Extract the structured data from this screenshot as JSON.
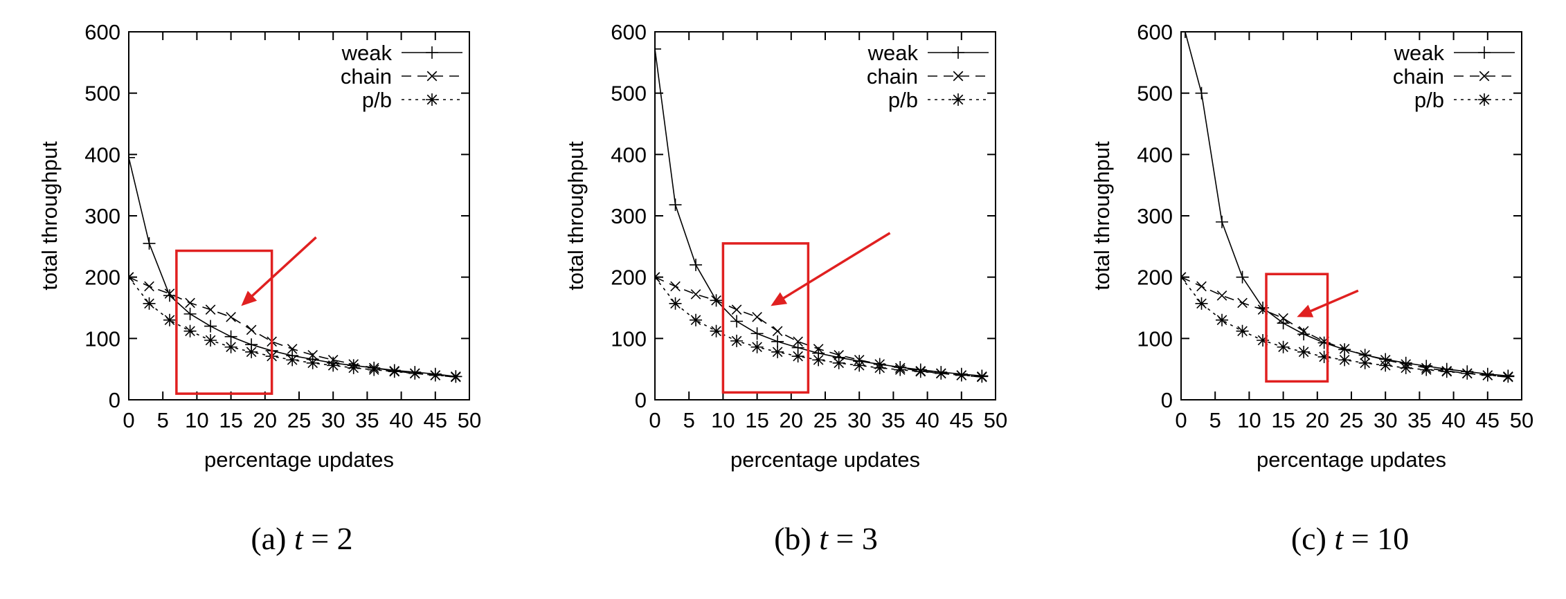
{
  "chart_data": [
    {
      "type": "line",
      "caption": {
        "label": "(a)",
        "variable": "t",
        "value": "= 2"
      },
      "xlabel": "percentage updates",
      "ylabel": "total throughput",
      "xlim": [
        0,
        50
      ],
      "ylim": [
        0,
        600
      ],
      "xticks": [
        0,
        5,
        10,
        15,
        20,
        25,
        30,
        35,
        40,
        45,
        50
      ],
      "yticks": [
        0,
        100,
        200,
        300,
        400,
        500,
        600
      ],
      "legend_position": "top-right",
      "series": [
        {
          "name": "weak",
          "marker": "plus",
          "dash": "solid",
          "x": [
            0,
            3,
            6,
            9,
            12,
            15,
            18,
            21,
            24,
            27,
            30,
            33,
            36,
            39,
            42,
            45,
            48
          ],
          "y": [
            395,
            255,
            170,
            140,
            120,
            103,
            90,
            80,
            72,
            66,
            60,
            56,
            52,
            48,
            45,
            42,
            38
          ]
        },
        {
          "name": "chain",
          "marker": "x",
          "dash": "dashed",
          "x": [
            0,
            3,
            6,
            9,
            12,
            15,
            18,
            21,
            24,
            27,
            30,
            33,
            36,
            39,
            42,
            45,
            48
          ],
          "y": [
            200,
            185,
            173,
            158,
            147,
            135,
            114,
            95,
            83,
            73,
            65,
            58,
            52,
            47,
            43,
            40,
            37
          ]
        },
        {
          "name": "p/b",
          "marker": "star",
          "dash": "dotted",
          "x": [
            0,
            3,
            6,
            9,
            12,
            15,
            18,
            21,
            24,
            27,
            30,
            33,
            36,
            39,
            42,
            45,
            48
          ],
          "y": [
            200,
            157,
            130,
            112,
            97,
            86,
            78,
            71,
            65,
            60,
            56,
            52,
            49,
            46,
            43,
            40,
            38
          ]
        }
      ],
      "highlight_box": {
        "x": [
          7,
          21
        ],
        "y": [
          10,
          243
        ]
      },
      "arrow": {
        "from": [
          27.5,
          265
        ],
        "to": [
          16.5,
          153
        ]
      }
    },
    {
      "type": "line",
      "caption": {
        "label": "(b)",
        "variable": "t",
        "value": "= 3"
      },
      "xlabel": "percentage updates",
      "ylabel": "total throughput",
      "xlim": [
        0,
        50
      ],
      "ylim": [
        0,
        600
      ],
      "xticks": [
        0,
        5,
        10,
        15,
        20,
        25,
        30,
        35,
        40,
        45,
        50
      ],
      "yticks": [
        0,
        100,
        200,
        300,
        400,
        500,
        600
      ],
      "legend_position": "top-right",
      "series": [
        {
          "name": "weak",
          "marker": "plus",
          "dash": "solid",
          "x": [
            0,
            3,
            6,
            9,
            12,
            15,
            18,
            21,
            24,
            27,
            30,
            33,
            36,
            39,
            42,
            45,
            48
          ],
          "y": [
            572,
            318,
            220,
            162,
            128,
            108,
            95,
            85,
            76,
            69,
            63,
            58,
            53,
            49,
            45,
            42,
            39
          ]
        },
        {
          "name": "chain",
          "marker": "x",
          "dash": "dashed",
          "x": [
            0,
            3,
            6,
            9,
            12,
            15,
            18,
            21,
            24,
            27,
            30,
            33,
            36,
            39,
            42,
            45,
            48
          ],
          "y": [
            200,
            185,
            172,
            162,
            147,
            135,
            112,
            95,
            83,
            73,
            65,
            58,
            52,
            47,
            43,
            40,
            37
          ]
        },
        {
          "name": "p/b",
          "marker": "star",
          "dash": "dotted",
          "x": [
            0,
            3,
            6,
            9,
            12,
            15,
            18,
            21,
            24,
            27,
            30,
            33,
            36,
            39,
            42,
            45,
            48
          ],
          "y": [
            200,
            157,
            130,
            112,
            96,
            86,
            78,
            71,
            65,
            60,
            56,
            52,
            49,
            46,
            43,
            40,
            38
          ]
        }
      ],
      "highlight_box": {
        "x": [
          10,
          22.5
        ],
        "y": [
          12,
          255
        ]
      },
      "arrow": {
        "from": [
          34.5,
          272
        ],
        "to": [
          17,
          153
        ]
      }
    },
    {
      "type": "line",
      "caption": {
        "label": "(c)",
        "variable": "t",
        "value": "= 10"
      },
      "xlabel": "percentage updates",
      "ylabel": "total throughput",
      "xlim": [
        0,
        50
      ],
      "ylim": [
        0,
        600
      ],
      "xticks": [
        0,
        5,
        10,
        15,
        20,
        25,
        30,
        35,
        40,
        45,
        50
      ],
      "yticks": [
        0,
        100,
        200,
        300,
        400,
        500,
        600
      ],
      "legend_position": "top-right",
      "series": [
        {
          "name": "weak",
          "marker": "plus",
          "dash": "solid",
          "x": [
            0.6,
            3,
            6,
            9,
            12,
            15,
            18,
            21,
            24,
            27,
            30,
            33,
            36,
            39,
            42,
            45,
            48
          ],
          "y": [
            600,
            500,
            290,
            200,
            150,
            125,
            107,
            93,
            82,
            73,
            66,
            60,
            55,
            50,
            46,
            42,
            39
          ]
        },
        {
          "name": "chain",
          "marker": "x",
          "dash": "dashed",
          "x": [
            0,
            3,
            6,
            9,
            12,
            15,
            18,
            21,
            24,
            27,
            30,
            33,
            36,
            39,
            42,
            45,
            48
          ],
          "y": [
            200,
            185,
            170,
            158,
            147,
            133,
            112,
            95,
            83,
            73,
            65,
            58,
            52,
            47,
            43,
            40,
            37
          ]
        },
        {
          "name": "p/b",
          "marker": "star",
          "dash": "dotted",
          "x": [
            0,
            3,
            6,
            9,
            12,
            15,
            18,
            21,
            24,
            27,
            30,
            33,
            36,
            39,
            42,
            45,
            48
          ],
          "y": [
            200,
            157,
            130,
            112,
            97,
            86,
            78,
            70,
            65,
            60,
            56,
            52,
            49,
            46,
            43,
            40,
            38
          ]
        }
      ],
      "highlight_box": {
        "x": [
          12.5,
          21.5
        ],
        "y": [
          30,
          205
        ]
      },
      "arrow": {
        "from": [
          26,
          178
        ],
        "to": [
          17,
          135
        ]
      }
    }
  ],
  "colors": {
    "axes": "#000000",
    "series": "#000000",
    "highlight": "#e02020"
  }
}
